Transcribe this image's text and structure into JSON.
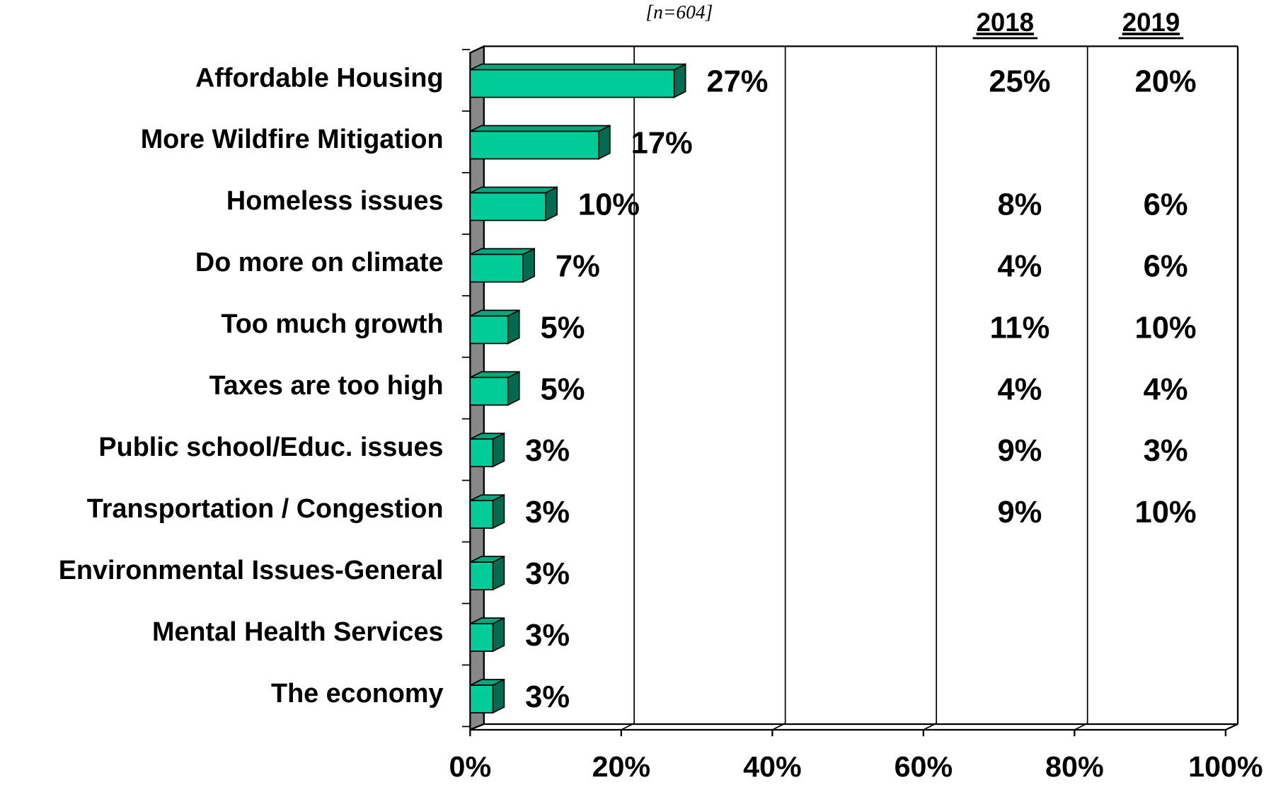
{
  "chart_data": {
    "type": "bar",
    "orientation": "horizontal",
    "subtitle": "[n=604]",
    "categories": [
      "Affordable Housing",
      "More Wildfire Mitigation",
      "Homeless issues",
      "Do more on climate",
      "Too much growth",
      "Taxes are too high",
      "Public school/Educ. issues",
      "Transportation / Congestion",
      "Environmental Issues-General",
      "Mental Health Services",
      "The economy"
    ],
    "values": [
      27,
      17,
      10,
      7,
      5,
      5,
      3,
      3,
      3,
      3,
      3
    ],
    "value_labels": [
      "27%",
      "17%",
      "10%",
      "7%",
      "5%",
      "5%",
      "3%",
      "3%",
      "3%",
      "3%",
      "3%"
    ],
    "color": "#00cc99",
    "xlim": [
      0,
      100
    ],
    "xticks": [
      {
        "value": 0,
        "label": "0%"
      },
      {
        "value": 20,
        "label": "20%"
      },
      {
        "value": 40,
        "label": "40%"
      },
      {
        "value": 60,
        "label": "60%"
      },
      {
        "value": 80,
        "label": "80%"
      },
      {
        "value": 100,
        "label": "100%"
      }
    ],
    "grid": true,
    "series": [
      {
        "name": "2018",
        "values": [
          25,
          null,
          8,
          4,
          11,
          4,
          9,
          9,
          null,
          null,
          null
        ],
        "value_labels": [
          "25%",
          null,
          "8%",
          "4%",
          "11%",
          "4%",
          "9%",
          "9%",
          null,
          null,
          null
        ]
      },
      {
        "name": "2019",
        "values": [
          20,
          null,
          6,
          6,
          10,
          4,
          3,
          10,
          null,
          null,
          null
        ],
        "value_labels": [
          "20%",
          null,
          "6%",
          "6%",
          "10%",
          "4%",
          "3%",
          "10%",
          null,
          null,
          null
        ]
      }
    ]
  }
}
